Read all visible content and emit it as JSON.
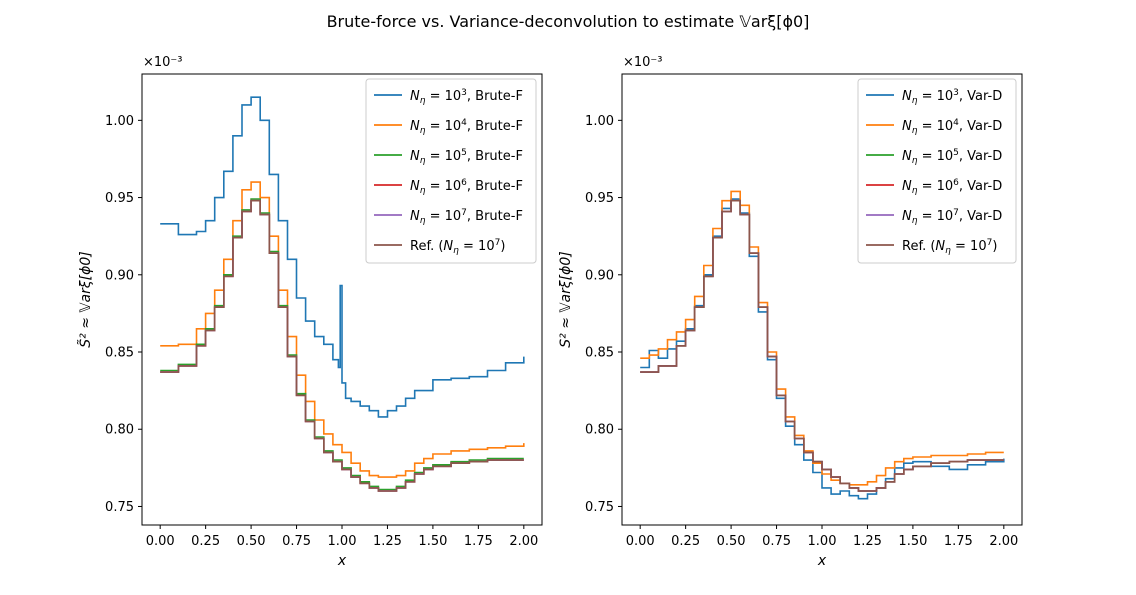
{
  "figure": {
    "title": "Brute-force vs. Variance-deconvolution to estimate 𝕍arξ[ϕ0]"
  },
  "colors": {
    "N1e3": "#1f77b4",
    "N1e4": "#ff7f0e",
    "N1e5": "#2ca02c",
    "N1e6": "#d62728",
    "N1e7": "#9467bd",
    "ref": "#8c564b"
  },
  "chart_data": [
    {
      "type": "line",
      "step": true,
      "xlabel": "x",
      "ylabel": "S̃² ≈ 𝕍arξ[ϕ0]",
      "y_multiplier": "×10⁻³",
      "xlim": [
        -0.1,
        2.1
      ],
      "ylim": [
        0.738,
        1.03
      ],
      "xticks": [
        0.0,
        0.25,
        0.5,
        0.75,
        1.0,
        1.25,
        1.5,
        1.75,
        2.0
      ],
      "xtick_labels": [
        "0.00",
        "0.25",
        "0.50",
        "0.75",
        "1.00",
        "1.25",
        "1.50",
        "1.75",
        "2.00"
      ],
      "yticks": [
        0.75,
        0.8,
        0.85,
        0.9,
        0.95,
        1.0
      ],
      "ytick_labels": [
        "0.75",
        "0.80",
        "0.85",
        "0.90",
        "0.95",
        "1.00"
      ],
      "legend_position": "top-right",
      "series": [
        {
          "name": "Nη = 10³, Brute-F",
          "name_base": "10",
          "name_exp": "3",
          "name_suffix": ", Brute-F",
          "color_key": "N1e3",
          "x": [
            0.0,
            0.1,
            0.2,
            0.25,
            0.3,
            0.35,
            0.4,
            0.45,
            0.5,
            0.55,
            0.6,
            0.65,
            0.7,
            0.75,
            0.8,
            0.85,
            0.9,
            0.95,
            0.98,
            0.99,
            1.0,
            1.02,
            1.05,
            1.1,
            1.15,
            1.2,
            1.25,
            1.3,
            1.35,
            1.4,
            1.5,
            1.6,
            1.7,
            1.8,
            1.9,
            2.0
          ],
          "y": [
            0.933,
            0.926,
            0.928,
            0.935,
            0.95,
            0.967,
            0.99,
            1.01,
            1.015,
            1.0,
            0.965,
            0.935,
            0.91,
            0.885,
            0.87,
            0.86,
            0.855,
            0.845,
            0.84,
            0.893,
            0.83,
            0.82,
            0.818,
            0.815,
            0.812,
            0.808,
            0.812,
            0.815,
            0.82,
            0.825,
            0.832,
            0.833,
            0.834,
            0.838,
            0.843,
            0.847
          ]
        },
        {
          "name": "Nη = 10⁴, Brute-F",
          "name_base": "10",
          "name_exp": "4",
          "name_suffix": ", Brute-F",
          "color_key": "N1e4",
          "x": [
            0.0,
            0.1,
            0.2,
            0.25,
            0.3,
            0.35,
            0.4,
            0.45,
            0.5,
            0.55,
            0.6,
            0.65,
            0.7,
            0.75,
            0.8,
            0.85,
            0.9,
            0.95,
            1.0,
            1.05,
            1.1,
            1.15,
            1.2,
            1.25,
            1.3,
            1.35,
            1.4,
            1.45,
            1.5,
            1.6,
            1.7,
            1.8,
            1.9,
            2.0
          ],
          "y": [
            0.854,
            0.855,
            0.865,
            0.875,
            0.89,
            0.91,
            0.935,
            0.955,
            0.96,
            0.95,
            0.925,
            0.89,
            0.86,
            0.835,
            0.818,
            0.806,
            0.797,
            0.79,
            0.785,
            0.778,
            0.773,
            0.77,
            0.769,
            0.769,
            0.77,
            0.773,
            0.778,
            0.781,
            0.784,
            0.786,
            0.787,
            0.788,
            0.789,
            0.791
          ]
        },
        {
          "name": "Nη = 10⁵, Brute-F",
          "name_base": "10",
          "name_exp": "5",
          "name_suffix": ", Brute-F",
          "color_key": "N1e5",
          "x": [
            0.0,
            0.1,
            0.2,
            0.25,
            0.3,
            0.35,
            0.4,
            0.45,
            0.5,
            0.55,
            0.6,
            0.65,
            0.7,
            0.75,
            0.8,
            0.85,
            0.9,
            0.95,
            1.0,
            1.05,
            1.1,
            1.15,
            1.2,
            1.25,
            1.3,
            1.35,
            1.4,
            1.45,
            1.5,
            1.6,
            1.7,
            1.8,
            1.9,
            2.0
          ],
          "y": [
            0.838,
            0.842,
            0.855,
            0.865,
            0.88,
            0.9,
            0.925,
            0.942,
            0.949,
            0.94,
            0.915,
            0.88,
            0.848,
            0.823,
            0.806,
            0.795,
            0.786,
            0.78,
            0.775,
            0.77,
            0.766,
            0.763,
            0.761,
            0.761,
            0.763,
            0.767,
            0.772,
            0.775,
            0.777,
            0.779,
            0.78,
            0.781,
            0.781,
            0.781
          ]
        },
        {
          "name": "Nη = 10⁶, Brute-F",
          "name_base": "10",
          "name_exp": "6",
          "name_suffix": ", Brute-F",
          "color_key": "N1e6",
          "x": [
            0.0,
            0.1,
            0.2,
            0.25,
            0.3,
            0.35,
            0.4,
            0.45,
            0.5,
            0.55,
            0.6,
            0.65,
            0.7,
            0.75,
            0.8,
            0.85,
            0.9,
            0.95,
            1.0,
            1.05,
            1.1,
            1.15,
            1.2,
            1.25,
            1.3,
            1.35,
            1.4,
            1.45,
            1.5,
            1.6,
            1.7,
            1.8,
            1.9,
            2.0
          ],
          "y": [
            0.837,
            0.841,
            0.854,
            0.864,
            0.879,
            0.899,
            0.924,
            0.941,
            0.948,
            0.939,
            0.914,
            0.879,
            0.847,
            0.822,
            0.805,
            0.794,
            0.785,
            0.779,
            0.774,
            0.769,
            0.765,
            0.762,
            0.76,
            0.76,
            0.762,
            0.766,
            0.771,
            0.774,
            0.776,
            0.778,
            0.779,
            0.78,
            0.78,
            0.78
          ]
        },
        {
          "name": "Nη = 10⁷, Brute-F",
          "name_base": "10",
          "name_exp": "7",
          "name_suffix": ", Brute-F",
          "color_key": "N1e7",
          "x": [
            0.0,
            0.1,
            0.2,
            0.25,
            0.3,
            0.35,
            0.4,
            0.45,
            0.5,
            0.55,
            0.6,
            0.65,
            0.7,
            0.75,
            0.8,
            0.85,
            0.9,
            0.95,
            1.0,
            1.05,
            1.1,
            1.15,
            1.2,
            1.25,
            1.3,
            1.35,
            1.4,
            1.45,
            1.5,
            1.6,
            1.7,
            1.8,
            1.9,
            2.0
          ],
          "y": [
            0.837,
            0.841,
            0.854,
            0.864,
            0.879,
            0.899,
            0.924,
            0.941,
            0.948,
            0.939,
            0.914,
            0.879,
            0.847,
            0.822,
            0.805,
            0.794,
            0.785,
            0.779,
            0.774,
            0.769,
            0.765,
            0.762,
            0.76,
            0.76,
            0.762,
            0.766,
            0.771,
            0.774,
            0.776,
            0.778,
            0.779,
            0.78,
            0.78,
            0.78
          ]
        },
        {
          "name": "Ref. (Nη = 10⁷)",
          "name_prefix": "Ref. (",
          "name_base": "10",
          "name_exp": "7",
          "name_suffix": ")",
          "color_key": "ref",
          "x": [
            0.0,
            0.1,
            0.2,
            0.25,
            0.3,
            0.35,
            0.4,
            0.45,
            0.5,
            0.55,
            0.6,
            0.65,
            0.7,
            0.75,
            0.8,
            0.85,
            0.9,
            0.95,
            1.0,
            1.05,
            1.1,
            1.15,
            1.2,
            1.25,
            1.3,
            1.35,
            1.4,
            1.45,
            1.5,
            1.6,
            1.7,
            1.8,
            1.9,
            2.0
          ],
          "y": [
            0.837,
            0.841,
            0.854,
            0.864,
            0.879,
            0.899,
            0.924,
            0.941,
            0.948,
            0.939,
            0.914,
            0.879,
            0.847,
            0.822,
            0.805,
            0.794,
            0.785,
            0.779,
            0.774,
            0.769,
            0.765,
            0.762,
            0.76,
            0.76,
            0.762,
            0.766,
            0.771,
            0.774,
            0.776,
            0.778,
            0.779,
            0.78,
            0.78,
            0.78
          ]
        }
      ]
    },
    {
      "type": "line",
      "step": true,
      "xlabel": "x",
      "ylabel": "S² ≈ 𝕍arξ[ϕ0]",
      "y_multiplier": "×10⁻³",
      "xlim": [
        -0.1,
        2.1
      ],
      "ylim": [
        0.738,
        1.03
      ],
      "xticks": [
        0.0,
        0.25,
        0.5,
        0.75,
        1.0,
        1.25,
        1.5,
        1.75,
        2.0
      ],
      "xtick_labels": [
        "0.00",
        "0.25",
        "0.50",
        "0.75",
        "1.00",
        "1.25",
        "1.50",
        "1.75",
        "2.00"
      ],
      "yticks": [
        0.75,
        0.8,
        0.85,
        0.9,
        0.95,
        1.0
      ],
      "ytick_labels": [
        "0.75",
        "0.80",
        "0.85",
        "0.90",
        "0.95",
        "1.00"
      ],
      "legend_position": "top-right",
      "series": [
        {
          "name": "Nη = 10³, Var-D",
          "name_base": "10",
          "name_exp": "3",
          "name_suffix": ", Var-D",
          "color_key": "N1e3",
          "x": [
            0.0,
            0.05,
            0.1,
            0.15,
            0.2,
            0.25,
            0.3,
            0.35,
            0.4,
            0.45,
            0.5,
            0.55,
            0.6,
            0.65,
            0.7,
            0.75,
            0.8,
            0.85,
            0.9,
            0.95,
            1.0,
            1.05,
            1.1,
            1.15,
            1.2,
            1.25,
            1.3,
            1.35,
            1.4,
            1.45,
            1.5,
            1.6,
            1.7,
            1.8,
            1.9,
            2.0
          ],
          "y": [
            0.84,
            0.851,
            0.846,
            0.852,
            0.857,
            0.865,
            0.88,
            0.9,
            0.925,
            0.943,
            0.949,
            0.94,
            0.912,
            0.876,
            0.845,
            0.82,
            0.802,
            0.79,
            0.78,
            0.772,
            0.762,
            0.758,
            0.76,
            0.757,
            0.755,
            0.758,
            0.762,
            0.768,
            0.775,
            0.778,
            0.779,
            0.776,
            0.774,
            0.777,
            0.779,
            0.781
          ]
        },
        {
          "name": "Nη = 10⁴, Var-D",
          "name_base": "10",
          "name_exp": "4",
          "name_suffix": ", Var-D",
          "color_key": "N1e4",
          "x": [
            0.0,
            0.05,
            0.1,
            0.15,
            0.2,
            0.25,
            0.3,
            0.35,
            0.4,
            0.45,
            0.5,
            0.55,
            0.6,
            0.65,
            0.7,
            0.75,
            0.8,
            0.85,
            0.9,
            0.95,
            1.0,
            1.05,
            1.1,
            1.15,
            1.2,
            1.25,
            1.3,
            1.35,
            1.4,
            1.45,
            1.5,
            1.6,
            1.7,
            1.8,
            1.9,
            2.0
          ],
          "y": [
            0.846,
            0.848,
            0.852,
            0.858,
            0.863,
            0.871,
            0.886,
            0.906,
            0.93,
            0.948,
            0.954,
            0.945,
            0.918,
            0.882,
            0.85,
            0.826,
            0.808,
            0.796,
            0.786,
            0.778,
            0.771,
            0.767,
            0.765,
            0.764,
            0.764,
            0.766,
            0.77,
            0.775,
            0.779,
            0.781,
            0.782,
            0.783,
            0.783,
            0.784,
            0.785,
            0.785
          ]
        },
        {
          "name": "Nη = 10⁵, Var-D",
          "name_base": "10",
          "name_exp": "5",
          "name_suffix": ", Var-D",
          "color_key": "N1e5",
          "x": [
            0.0,
            0.1,
            0.2,
            0.25,
            0.3,
            0.35,
            0.4,
            0.45,
            0.5,
            0.55,
            0.6,
            0.65,
            0.7,
            0.75,
            0.8,
            0.85,
            0.9,
            0.95,
            1.0,
            1.05,
            1.1,
            1.15,
            1.2,
            1.25,
            1.3,
            1.35,
            1.4,
            1.45,
            1.5,
            1.6,
            1.7,
            1.8,
            1.9,
            2.0
          ],
          "y": [
            0.837,
            0.841,
            0.854,
            0.864,
            0.879,
            0.899,
            0.924,
            0.941,
            0.948,
            0.939,
            0.914,
            0.879,
            0.847,
            0.822,
            0.805,
            0.794,
            0.785,
            0.779,
            0.774,
            0.769,
            0.765,
            0.762,
            0.76,
            0.76,
            0.762,
            0.766,
            0.771,
            0.774,
            0.776,
            0.778,
            0.779,
            0.78,
            0.78,
            0.78
          ]
        },
        {
          "name": "Nη = 10⁶, Var-D",
          "name_base": "10",
          "name_exp": "6",
          "name_suffix": ", Var-D",
          "color_key": "N1e6",
          "x": [
            0.0,
            0.1,
            0.2,
            0.25,
            0.3,
            0.35,
            0.4,
            0.45,
            0.5,
            0.55,
            0.6,
            0.65,
            0.7,
            0.75,
            0.8,
            0.85,
            0.9,
            0.95,
            1.0,
            1.05,
            1.1,
            1.15,
            1.2,
            1.25,
            1.3,
            1.35,
            1.4,
            1.45,
            1.5,
            1.6,
            1.7,
            1.8,
            1.9,
            2.0
          ],
          "y": [
            0.837,
            0.841,
            0.854,
            0.864,
            0.879,
            0.899,
            0.924,
            0.941,
            0.948,
            0.939,
            0.914,
            0.879,
            0.847,
            0.822,
            0.805,
            0.794,
            0.785,
            0.779,
            0.774,
            0.769,
            0.765,
            0.762,
            0.76,
            0.76,
            0.762,
            0.766,
            0.771,
            0.774,
            0.776,
            0.778,
            0.779,
            0.78,
            0.78,
            0.78
          ]
        },
        {
          "name": "Nη = 10⁷, Var-D",
          "name_base": "10",
          "name_exp": "7",
          "name_suffix": ", Var-D",
          "color_key": "N1e7",
          "x": [
            0.0,
            0.1,
            0.2,
            0.25,
            0.3,
            0.35,
            0.4,
            0.45,
            0.5,
            0.55,
            0.6,
            0.65,
            0.7,
            0.75,
            0.8,
            0.85,
            0.9,
            0.95,
            1.0,
            1.05,
            1.1,
            1.15,
            1.2,
            1.25,
            1.3,
            1.35,
            1.4,
            1.45,
            1.5,
            1.6,
            1.7,
            1.8,
            1.9,
            2.0
          ],
          "y": [
            0.837,
            0.841,
            0.854,
            0.864,
            0.879,
            0.899,
            0.924,
            0.941,
            0.948,
            0.939,
            0.914,
            0.879,
            0.847,
            0.822,
            0.805,
            0.794,
            0.785,
            0.779,
            0.774,
            0.769,
            0.765,
            0.762,
            0.76,
            0.76,
            0.762,
            0.766,
            0.771,
            0.774,
            0.776,
            0.778,
            0.779,
            0.78,
            0.78,
            0.78
          ]
        },
        {
          "name": "Ref. (Nη = 10⁷)",
          "name_prefix": "Ref. (",
          "name_base": "10",
          "name_exp": "7",
          "name_suffix": ")",
          "color_key": "ref",
          "x": [
            0.0,
            0.1,
            0.2,
            0.25,
            0.3,
            0.35,
            0.4,
            0.45,
            0.5,
            0.55,
            0.6,
            0.65,
            0.7,
            0.75,
            0.8,
            0.85,
            0.9,
            0.95,
            1.0,
            1.05,
            1.1,
            1.15,
            1.2,
            1.25,
            1.3,
            1.35,
            1.4,
            1.45,
            1.5,
            1.6,
            1.7,
            1.8,
            1.9,
            2.0
          ],
          "y": [
            0.837,
            0.841,
            0.854,
            0.864,
            0.879,
            0.899,
            0.924,
            0.941,
            0.948,
            0.939,
            0.914,
            0.879,
            0.847,
            0.822,
            0.805,
            0.794,
            0.785,
            0.779,
            0.774,
            0.769,
            0.765,
            0.762,
            0.76,
            0.76,
            0.762,
            0.766,
            0.771,
            0.774,
            0.776,
            0.778,
            0.779,
            0.78,
            0.78,
            0.78
          ]
        }
      ]
    }
  ]
}
